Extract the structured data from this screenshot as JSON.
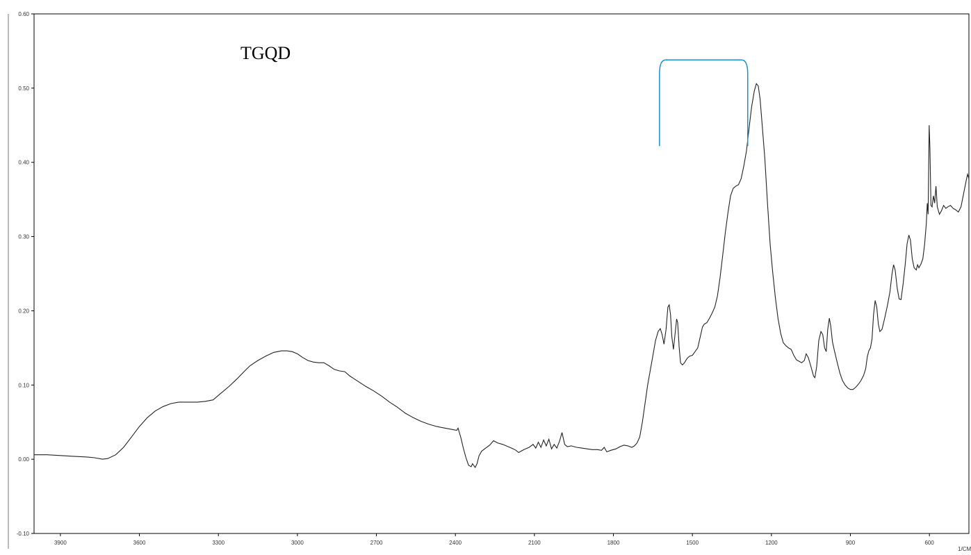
{
  "chart_data": {
    "type": "line",
    "x_unit_label": "1/CM",
    "x_range": [
      4000,
      450
    ],
    "y_range": [
      -0.1,
      0.6
    ],
    "x_ticks": [
      "3900",
      "3600",
      "3300",
      "3000",
      "2700",
      "2400",
      "2100",
      "1800",
      "1500",
      "1200",
      "900",
      "600"
    ],
    "x_tick_values": [
      3900,
      3600,
      3300,
      3000,
      2700,
      2400,
      2100,
      1800,
      1500,
      1200,
      900,
      600
    ],
    "y_ticks": [
      "-0.10",
      "0.00",
      "0.10",
      "0.20",
      "0.30",
      "0.40",
      "0.50",
      "0.60"
    ],
    "y_tick_values": [
      -0.1,
      0.0,
      0.1,
      0.2,
      0.3,
      0.4,
      0.5,
      0.6
    ],
    "grid": false,
    "annotation_text": "TGQD",
    "bracket": {
      "x_start": 1625,
      "x_end": 1290,
      "y_top": 0.538,
      "y_bottom": 0.422,
      "color": "#1a8fd0"
    },
    "series": [
      {
        "color": "#222222",
        "points": [
          [
            4000,
            0.006
          ],
          [
            3950,
            0.006
          ],
          [
            3900,
            0.005
          ],
          [
            3850,
            0.004
          ],
          [
            3800,
            0.003
          ],
          [
            3770,
            0.002
          ],
          [
            3740,
            0.0
          ],
          [
            3720,
            0.001
          ],
          [
            3690,
            0.006
          ],
          [
            3660,
            0.016
          ],
          [
            3630,
            0.03
          ],
          [
            3600,
            0.044
          ],
          [
            3570,
            0.056
          ],
          [
            3540,
            0.065
          ],
          [
            3510,
            0.071
          ],
          [
            3480,
            0.075
          ],
          [
            3450,
            0.077
          ],
          [
            3420,
            0.077
          ],
          [
            3380,
            0.077
          ],
          [
            3350,
            0.078
          ],
          [
            3320,
            0.08
          ],
          [
            3300,
            0.086
          ],
          [
            3260,
            0.098
          ],
          [
            3230,
            0.108
          ],
          [
            3200,
            0.119
          ],
          [
            3180,
            0.126
          ],
          [
            3150,
            0.133
          ],
          [
            3120,
            0.139
          ],
          [
            3090,
            0.144
          ],
          [
            3060,
            0.146
          ],
          [
            3040,
            0.146
          ],
          [
            3020,
            0.145
          ],
          [
            3000,
            0.142
          ],
          [
            2980,
            0.137
          ],
          [
            2960,
            0.133
          ],
          [
            2940,
            0.131
          ],
          [
            2920,
            0.13
          ],
          [
            2900,
            0.13
          ],
          [
            2880,
            0.126
          ],
          [
            2860,
            0.121
          ],
          [
            2840,
            0.119
          ],
          [
            2820,
            0.118
          ],
          [
            2800,
            0.112
          ],
          [
            2770,
            0.105
          ],
          [
            2740,
            0.098
          ],
          [
            2710,
            0.092
          ],
          [
            2680,
            0.085
          ],
          [
            2650,
            0.077
          ],
          [
            2620,
            0.07
          ],
          [
            2590,
            0.062
          ],
          [
            2560,
            0.056
          ],
          [
            2530,
            0.051
          ],
          [
            2500,
            0.047
          ],
          [
            2470,
            0.044
          ],
          [
            2440,
            0.042
          ],
          [
            2410,
            0.04
          ],
          [
            2395,
            0.039
          ],
          [
            2390,
            0.042
          ],
          [
            2380,
            0.03
          ],
          [
            2370,
            0.015
          ],
          [
            2360,
            0.002
          ],
          [
            2350,
            -0.008
          ],
          [
            2340,
            -0.01
          ],
          [
            2335,
            -0.006
          ],
          [
            2325,
            -0.011
          ],
          [
            2318,
            -0.006
          ],
          [
            2310,
            0.005
          ],
          [
            2300,
            0.011
          ],
          [
            2285,
            0.015
          ],
          [
            2270,
            0.019
          ],
          [
            2255,
            0.025
          ],
          [
            2240,
            0.022
          ],
          [
            2220,
            0.02
          ],
          [
            2200,
            0.017
          ],
          [
            2180,
            0.014
          ],
          [
            2170,
            0.012
          ],
          [
            2160,
            0.009
          ],
          [
            2150,
            0.011
          ],
          [
            2140,
            0.013
          ],
          [
            2120,
            0.016
          ],
          [
            2105,
            0.02
          ],
          [
            2095,
            0.015
          ],
          [
            2085,
            0.023
          ],
          [
            2075,
            0.016
          ],
          [
            2065,
            0.026
          ],
          [
            2055,
            0.018
          ],
          [
            2045,
            0.027
          ],
          [
            2035,
            0.014
          ],
          [
            2025,
            0.02
          ],
          [
            2015,
            0.015
          ],
          [
            2005,
            0.024
          ],
          [
            1995,
            0.036
          ],
          [
            1985,
            0.02
          ],
          [
            1975,
            0.017
          ],
          [
            1960,
            0.018
          ],
          [
            1940,
            0.016
          ],
          [
            1920,
            0.015
          ],
          [
            1900,
            0.014
          ],
          [
            1880,
            0.013
          ],
          [
            1860,
            0.013
          ],
          [
            1845,
            0.012
          ],
          [
            1835,
            0.016
          ],
          [
            1825,
            0.01
          ],
          [
            1810,
            0.012
          ],
          [
            1790,
            0.014
          ],
          [
            1775,
            0.017
          ],
          [
            1760,
            0.019
          ],
          [
            1745,
            0.018
          ],
          [
            1730,
            0.016
          ],
          [
            1720,
            0.018
          ],
          [
            1710,
            0.022
          ],
          [
            1700,
            0.03
          ],
          [
            1690,
            0.05
          ],
          [
            1680,
            0.075
          ],
          [
            1670,
            0.1
          ],
          [
            1660,
            0.12
          ],
          [
            1650,
            0.14
          ],
          [
            1640,
            0.16
          ],
          [
            1630,
            0.172
          ],
          [
            1622,
            0.176
          ],
          [
            1615,
            0.168
          ],
          [
            1608,
            0.155
          ],
          [
            1600,
            0.175
          ],
          [
            1593,
            0.205
          ],
          [
            1588,
            0.208
          ],
          [
            1583,
            0.195
          ],
          [
            1578,
            0.165
          ],
          [
            1572,
            0.148
          ],
          [
            1565,
            0.172
          ],
          [
            1560,
            0.189
          ],
          [
            1556,
            0.184
          ],
          [
            1550,
            0.15
          ],
          [
            1545,
            0.13
          ],
          [
            1538,
            0.127
          ],
          [
            1530,
            0.13
          ],
          [
            1520,
            0.136
          ],
          [
            1510,
            0.139
          ],
          [
            1500,
            0.14
          ],
          [
            1490,
            0.145
          ],
          [
            1480,
            0.15
          ],
          [
            1470,
            0.165
          ],
          [
            1462,
            0.178
          ],
          [
            1455,
            0.182
          ],
          [
            1445,
            0.184
          ],
          [
            1435,
            0.19
          ],
          [
            1425,
            0.197
          ],
          [
            1415,
            0.205
          ],
          [
            1405,
            0.22
          ],
          [
            1395,
            0.245
          ],
          [
            1385,
            0.275
          ],
          [
            1375,
            0.305
          ],
          [
            1365,
            0.332
          ],
          [
            1355,
            0.355
          ],
          [
            1345,
            0.365
          ],
          [
            1335,
            0.368
          ],
          [
            1325,
            0.37
          ],
          [
            1315,
            0.378
          ],
          [
            1305,
            0.395
          ],
          [
            1295,
            0.415
          ],
          [
            1285,
            0.445
          ],
          [
            1275,
            0.475
          ],
          [
            1265,
            0.496
          ],
          [
            1257,
            0.506
          ],
          [
            1250,
            0.503
          ],
          [
            1243,
            0.485
          ],
          [
            1235,
            0.45
          ],
          [
            1225,
            0.405
          ],
          [
            1215,
            0.345
          ],
          [
            1205,
            0.29
          ],
          [
            1195,
            0.252
          ],
          [
            1185,
            0.218
          ],
          [
            1175,
            0.19
          ],
          [
            1165,
            0.17
          ],
          [
            1155,
            0.157
          ],
          [
            1145,
            0.153
          ],
          [
            1135,
            0.15
          ],
          [
            1125,
            0.148
          ],
          [
            1115,
            0.14
          ],
          [
            1105,
            0.134
          ],
          [
            1095,
            0.132
          ],
          [
            1085,
            0.13
          ],
          [
            1075,
            0.133
          ],
          [
            1068,
            0.142
          ],
          [
            1060,
            0.137
          ],
          [
            1050,
            0.125
          ],
          [
            1040,
            0.112
          ],
          [
            1035,
            0.11
          ],
          [
            1028,
            0.125
          ],
          [
            1020,
            0.16
          ],
          [
            1012,
            0.172
          ],
          [
            1005,
            0.168
          ],
          [
            998,
            0.15
          ],
          [
            992,
            0.145
          ],
          [
            986,
            0.175
          ],
          [
            980,
            0.19
          ],
          [
            975,
            0.18
          ],
          [
            968,
            0.158
          ],
          [
            960,
            0.145
          ],
          [
            950,
            0.13
          ],
          [
            940,
            0.116
          ],
          [
            930,
            0.106
          ],
          [
            920,
            0.1
          ],
          [
            910,
            0.096
          ],
          [
            900,
            0.094
          ],
          [
            890,
            0.094
          ],
          [
            880,
            0.097
          ],
          [
            870,
            0.101
          ],
          [
            860,
            0.106
          ],
          [
            850,
            0.113
          ],
          [
            842,
            0.122
          ],
          [
            836,
            0.138
          ],
          [
            830,
            0.146
          ],
          [
            824,
            0.15
          ],
          [
            818,
            0.162
          ],
          [
            812,
            0.195
          ],
          [
            806,
            0.214
          ],
          [
            800,
            0.205
          ],
          [
            794,
            0.182
          ],
          [
            788,
            0.172
          ],
          [
            780,
            0.175
          ],
          [
            770,
            0.19
          ],
          [
            760,
            0.206
          ],
          [
            750,
            0.225
          ],
          [
            742,
            0.25
          ],
          [
            736,
            0.262
          ],
          [
            730,
            0.255
          ],
          [
            722,
            0.23
          ],
          [
            715,
            0.216
          ],
          [
            708,
            0.215
          ],
          [
            700,
            0.236
          ],
          [
            692,
            0.262
          ],
          [
            685,
            0.29
          ],
          [
            678,
            0.302
          ],
          [
            672,
            0.295
          ],
          [
            665,
            0.27
          ],
          [
            658,
            0.258
          ],
          [
            650,
            0.255
          ],
          [
            645,
            0.262
          ],
          [
            640,
            0.258
          ],
          [
            632,
            0.263
          ],
          [
            625,
            0.27
          ],
          [
            618,
            0.29
          ],
          [
            612,
            0.316
          ],
          [
            608,
            0.345
          ],
          [
            605,
            0.33
          ],
          [
            601,
            0.45
          ],
          [
            598,
            0.42
          ],
          [
            594,
            0.342
          ],
          [
            590,
            0.34
          ],
          [
            585,
            0.355
          ],
          [
            580,
            0.345
          ],
          [
            575,
            0.368
          ],
          [
            570,
            0.34
          ],
          [
            562,
            0.33
          ],
          [
            554,
            0.335
          ],
          [
            546,
            0.342
          ],
          [
            538,
            0.338
          ],
          [
            530,
            0.34
          ],
          [
            520,
            0.342
          ],
          [
            510,
            0.338
          ],
          [
            500,
            0.336
          ],
          [
            490,
            0.333
          ],
          [
            480,
            0.34
          ],
          [
            470,
            0.358
          ],
          [
            460,
            0.376
          ],
          [
            455,
            0.384
          ],
          [
            450,
            0.378
          ]
        ]
      }
    ]
  }
}
